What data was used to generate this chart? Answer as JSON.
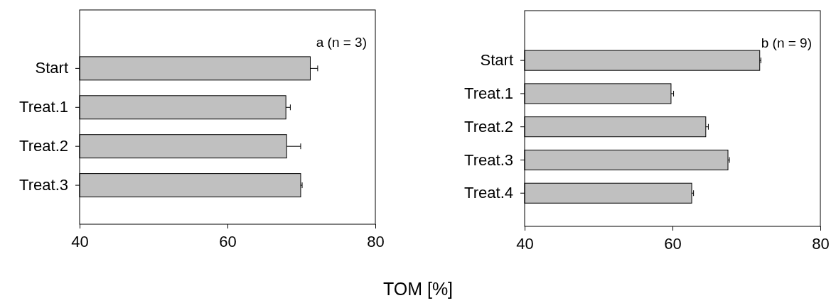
{
  "chart_data": [
    {
      "type": "bar",
      "orientation": "horizontal",
      "categories": [
        "Start",
        "Treat.1",
        "Treat.2",
        "Treat.3"
      ],
      "values": [
        71.2,
        67.9,
        68.0,
        69.9
      ],
      "errors": [
        1.0,
        0.6,
        1.9,
        0.2
      ],
      "color": "#c0c0c0",
      "xlim": [
        40,
        80
      ],
      "xticks": [
        40,
        60,
        80
      ],
      "xlabel": "TOM [%]",
      "annotations": [
        "a (n = 3)"
      ],
      "grid": false
    },
    {
      "type": "bar",
      "orientation": "horizontal",
      "categories": [
        "Start",
        "Treat.1",
        "Treat.2",
        "Treat.3",
        "Treat.4"
      ],
      "values": [
        71.8,
        59.8,
        64.5,
        67.5,
        62.6
      ],
      "errors": [
        0.15,
        0.35,
        0.35,
        0.2,
        0.25
      ],
      "color": "#c0c0c0",
      "xlim": [
        40,
        80
      ],
      "xticks": [
        40,
        60,
        80
      ],
      "annotations": [
        "b (n = 9)"
      ],
      "grid": false
    }
  ]
}
